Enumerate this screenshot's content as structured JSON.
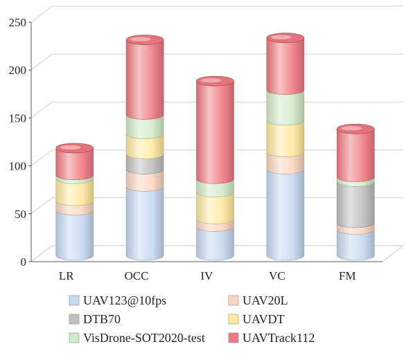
{
  "chart_data": {
    "type": "bar",
    "style": "stacked-3d-cylinder",
    "title": "",
    "xlabel": "",
    "ylabel": "",
    "ylim": [
      0,
      250
    ],
    "yticks": [
      0,
      50,
      100,
      150,
      200,
      250
    ],
    "grid": true,
    "legend_position": "bottom",
    "categories": [
      "LR",
      "OCC",
      "IV",
      "VC",
      "FM"
    ],
    "series": [
      {
        "name": "UAV123@10fps",
        "color": "#c6d9f1",
        "values": [
          47,
          72,
          30,
          90,
          27
        ]
      },
      {
        "name": "UAV20L",
        "color": "#fbd5c0",
        "values": [
          10,
          18,
          8,
          18,
          7
        ]
      },
      {
        "name": "DTB70",
        "color": "#bfbfbf",
        "values": [
          0,
          16,
          0,
          0,
          43
        ]
      },
      {
        "name": "UAVDT",
        "color": "#ffeaa0",
        "values": [
          23,
          21,
          28,
          33,
          0
        ]
      },
      {
        "name": "VisDrone-SOT2020-test",
        "color": "#d3eac7",
        "values": [
          4,
          20,
          14,
          32,
          5
        ]
      },
      {
        "name": "UAVTrack112",
        "color": "#f07a82",
        "values": [
          28,
          78,
          102,
          54,
          50
        ]
      }
    ]
  }
}
